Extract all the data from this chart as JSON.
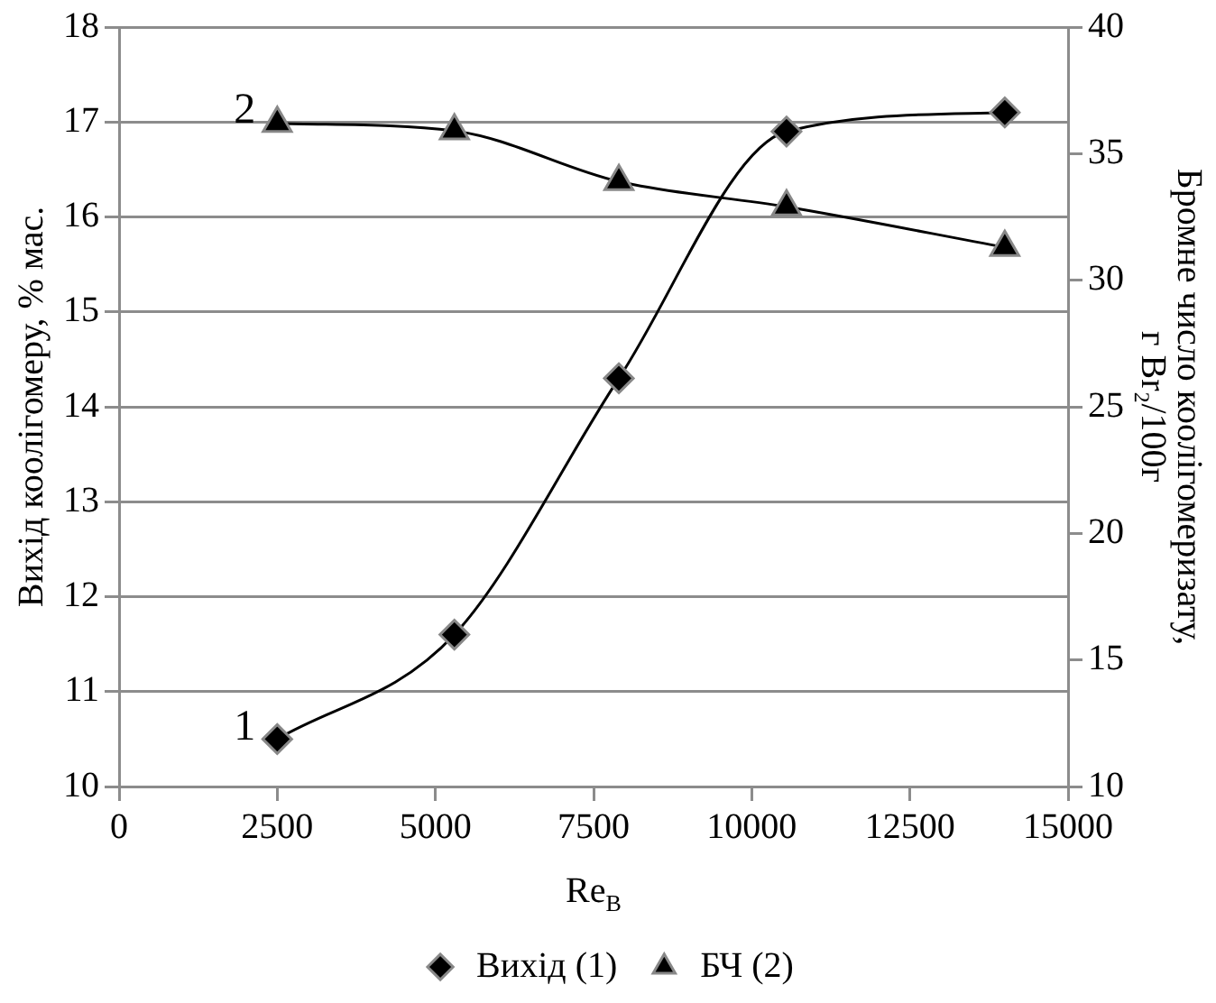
{
  "chart_data": {
    "type": "line",
    "xlabel": "Re$_{В}$",
    "ylabel": "Вихід коолігомеру, % мас.",
    "y2label": "Бромне число коолігомеризату, г Br₂/100г",
    "x": [
      2500,
      5300,
      7900,
      10550,
      14000
    ],
    "xlim": [
      0,
      15000
    ],
    "xticks": [
      0,
      2500,
      5000,
      7500,
      10000,
      12500,
      15000
    ],
    "ylim": [
      10,
      18
    ],
    "yticks": [
      10,
      11,
      12,
      13,
      14,
      15,
      16,
      17,
      18
    ],
    "y2lim": [
      10,
      40
    ],
    "y2ticks": [
      10,
      15,
      20,
      25,
      30,
      35,
      40
    ],
    "grid": "y",
    "legend": "bottom",
    "series": [
      {
        "name": "Вихід (1)",
        "color": "#000000",
        "marker": "diamond",
        "values": [
          10.5,
          11.6,
          14.3,
          16.9,
          17.1
        ]
      },
      {
        "name": "БЧ (2)",
        "color": "#000000",
        "marker": "triangle",
        "axis": "y2",
        "values": [
          36.2,
          35.9,
          33.9,
          32.9,
          31.3
        ]
      }
    ],
    "annotations": [
      {
        "text": "1",
        "x": 2500,
        "y": 10.5
      },
      {
        "text": "2",
        "x": 2500,
        "y": 17
      }
    ]
  }
}
